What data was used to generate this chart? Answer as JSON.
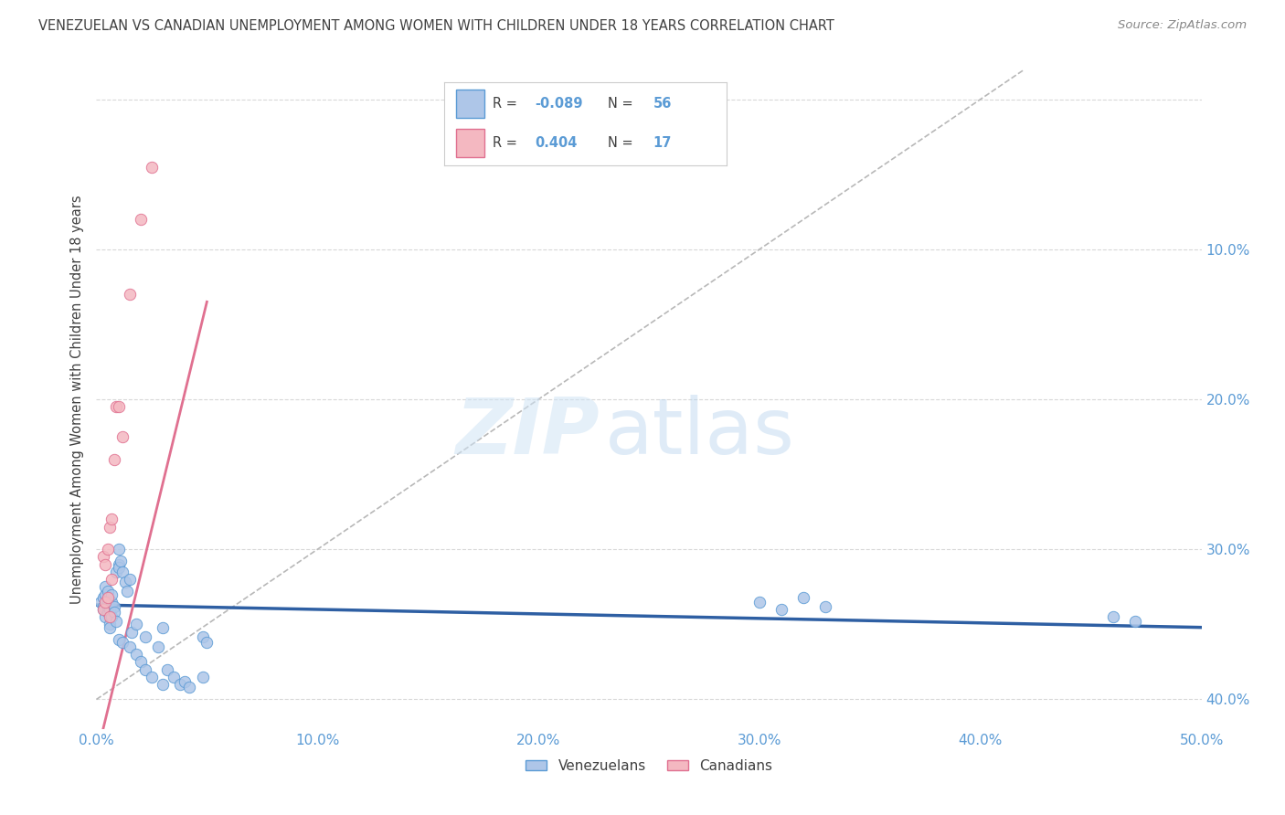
{
  "title": "VENEZUELAN VS CANADIAN UNEMPLOYMENT AMONG WOMEN WITH CHILDREN UNDER 18 YEARS CORRELATION CHART",
  "source": "Source: ZipAtlas.com",
  "ylabel": "Unemployment Among Women with Children Under 18 years",
  "xlim": [
    0.0,
    0.5
  ],
  "ylim": [
    -0.02,
    0.42
  ],
  "xticks": [
    0.0,
    0.1,
    0.2,
    0.3,
    0.4,
    0.5
  ],
  "yticks": [
    0.0,
    0.1,
    0.2,
    0.3,
    0.4
  ],
  "xtick_labels": [
    "0.0%",
    "10.0%",
    "20.0%",
    "30.0%",
    "40.0%",
    "50.0%"
  ],
  "right_ytick_labels": [
    "40.0%",
    "30.0%",
    "20.0%",
    "10.0%",
    ""
  ],
  "venezuelan_x": [
    0.002,
    0.003,
    0.003,
    0.003,
    0.004,
    0.004,
    0.004,
    0.005,
    0.005,
    0.005,
    0.005,
    0.006,
    0.006,
    0.006,
    0.007,
    0.007,
    0.007,
    0.008,
    0.008,
    0.009,
    0.009,
    0.01,
    0.01,
    0.01,
    0.011,
    0.012,
    0.013,
    0.014,
    0.015,
    0.016,
    0.01,
    0.012,
    0.015,
    0.018,
    0.018,
    0.02,
    0.022,
    0.022,
    0.025,
    0.028,
    0.03,
    0.03,
    0.032,
    0.035,
    0.038,
    0.04,
    0.042,
    0.048,
    0.048,
    0.05,
    0.3,
    0.31,
    0.32,
    0.33,
    0.46,
    0.47
  ],
  "venezuelan_y": [
    0.065,
    0.062,
    0.06,
    0.068,
    0.055,
    0.07,
    0.075,
    0.065,
    0.058,
    0.062,
    0.072,
    0.05,
    0.048,
    0.06,
    0.065,
    0.055,
    0.07,
    0.062,
    0.058,
    0.052,
    0.085,
    0.09,
    0.1,
    0.088,
    0.092,
    0.085,
    0.078,
    0.072,
    0.08,
    0.045,
    0.04,
    0.038,
    0.035,
    0.03,
    0.05,
    0.025,
    0.042,
    0.02,
    0.015,
    0.035,
    0.01,
    0.048,
    0.02,
    0.015,
    0.01,
    0.012,
    0.008,
    0.015,
    0.042,
    0.038,
    0.065,
    0.06,
    0.068,
    0.062,
    0.055,
    0.052
  ],
  "canadian_x": [
    0.003,
    0.003,
    0.004,
    0.004,
    0.005,
    0.005,
    0.006,
    0.006,
    0.007,
    0.007,
    0.008,
    0.009,
    0.01,
    0.012,
    0.015,
    0.02,
    0.025
  ],
  "canadian_y": [
    0.06,
    0.095,
    0.065,
    0.09,
    0.068,
    0.1,
    0.055,
    0.115,
    0.08,
    0.12,
    0.16,
    0.195,
    0.195,
    0.175,
    0.27,
    0.32,
    0.355
  ],
  "blue_line_x": [
    0.0,
    0.5
  ],
  "blue_line_y": [
    0.063,
    0.048
  ],
  "pink_line_x": [
    0.003,
    0.05
  ],
  "pink_line_y": [
    -0.02,
    0.265
  ],
  "diag_line_x": [
    0.0,
    0.42
  ],
  "diag_line_y": [
    0.0,
    0.42
  ],
  "watermark_zip": "ZIP",
  "watermark_atlas": "atlas",
  "background_color": "#ffffff",
  "blue_scatter_color": "#aec6e8",
  "pink_scatter_color": "#f4b8c1",
  "blue_edge_color": "#5b9bd5",
  "pink_edge_color": "#e07090",
  "blue_line_color": "#2e5fa3",
  "pink_line_color": "#e07090",
  "diag_line_color": "#b8b8b8",
  "grid_color": "#d8d8d8",
  "title_color": "#404040",
  "axis_color": "#5b9bd5",
  "marker_size": 80,
  "R_venezuelan": "-0.089",
  "N_venezuelan": "56",
  "R_canadian": "0.404",
  "N_canadian": "17"
}
